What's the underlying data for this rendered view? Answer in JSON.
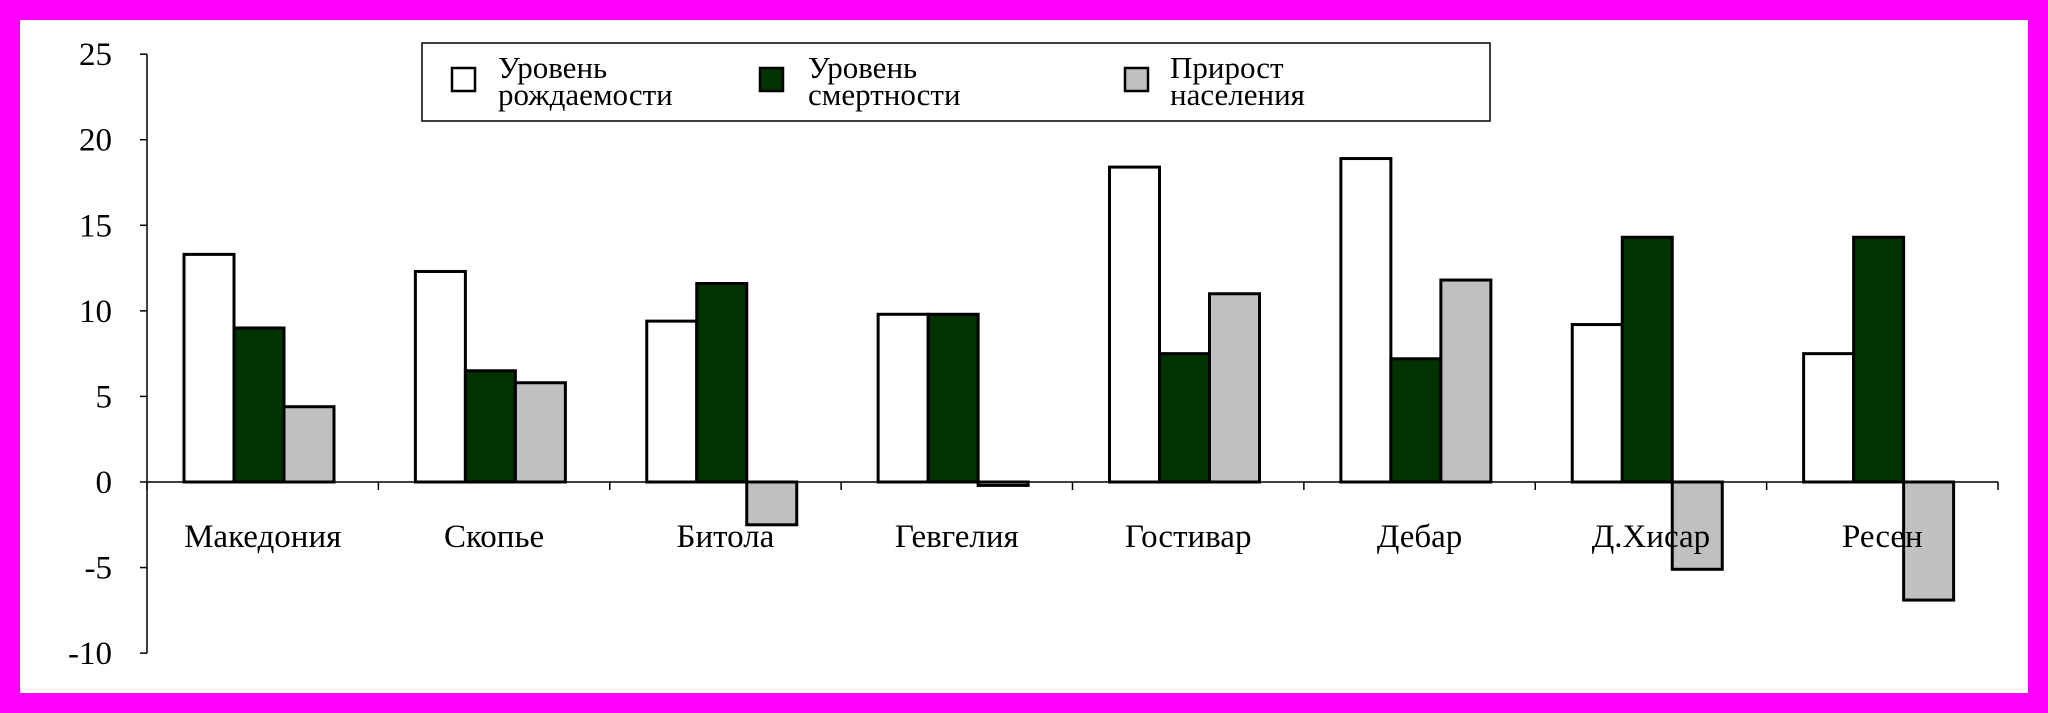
{
  "chart_data": {
    "type": "bar",
    "categories": [
      "Македония",
      "Скопье",
      "Битола",
      "Гевгелия",
      "Гостивар",
      "Дебар",
      "Д.Хисар",
      "Ресен"
    ],
    "series": [
      {
        "name": "Уровень рождаемости",
        "lines": [
          "Уровень",
          "рождаемости"
        ],
        "color": "#FFFFFF",
        "values": [
          13.3,
          12.3,
          9.4,
          9.8,
          18.4,
          18.9,
          9.2,
          7.5
        ]
      },
      {
        "name": "Уровень смертности",
        "lines": [
          "Уровень",
          "смертности"
        ],
        "color": "#003300",
        "values": [
          9.0,
          6.5,
          11.6,
          9.8,
          7.5,
          7.2,
          14.3,
          14.3
        ]
      },
      {
        "name": "Прирост населения",
        "lines": [
          "Прирост",
          "населения"
        ],
        "color": "#C0C0C0",
        "values": [
          4.4,
          5.8,
          -2.5,
          -0.2,
          11.0,
          11.8,
          -5.1,
          -6.9
        ]
      }
    ],
    "yticks": [
      "25",
      "20",
      "15",
      "10",
      "5",
      "0",
      "-5",
      "-10"
    ],
    "ylim": [
      -10,
      25
    ],
    "grid": false,
    "legend_position": "top"
  },
  "colors": {
    "frame_border": "#FF00FF",
    "background": "#FFFFFF",
    "axis": "#000000"
  }
}
